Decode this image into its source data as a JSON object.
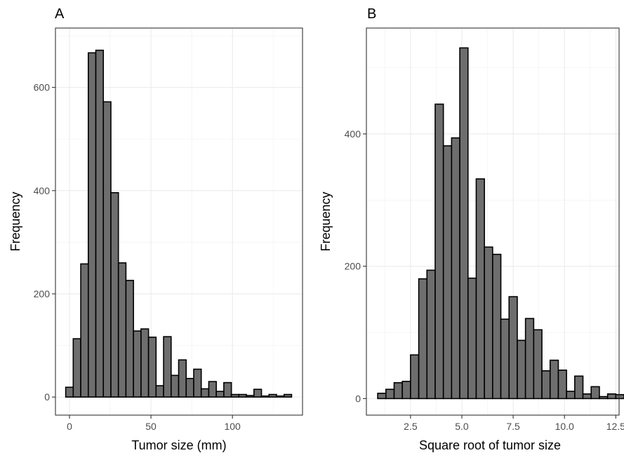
{
  "chart_data": [
    {
      "panel": "A",
      "type": "bar",
      "xlabel": "Tumor size (mm)",
      "ylabel": "Frequency",
      "xlim": [
        -8.6,
        143
      ],
      "ylim": [
        -35,
        715
      ],
      "xticks": [
        0,
        50,
        100
      ],
      "yticks": [
        0,
        200,
        400,
        600
      ],
      "xminor": [
        25,
        75,
        125
      ],
      "yminor": [
        100,
        300,
        500,
        700
      ],
      "bin_width": 4.62,
      "first_bin_start": -2.31,
      "values": [
        19,
        113,
        258,
        667,
        672,
        572,
        396,
        260,
        226,
        128,
        132,
        116,
        22,
        117,
        42,
        72,
        36,
        54,
        16,
        30,
        11,
        28,
        5,
        5,
        3,
        15,
        2,
        5,
        2,
        5
      ],
      "grid": true,
      "bar_fill": "#6e6e6e",
      "bar_stroke": "#000000"
    },
    {
      "panel": "B",
      "type": "bar",
      "xlabel": "Square root of tumor size",
      "ylabel": "Frequency",
      "xlim": [
        0.35,
        12.66
      ],
      "ylim": [
        -25,
        560
      ],
      "xticks": [
        2.5,
        5.0,
        7.5,
        10.0,
        12.5
      ],
      "xticklabels": [
        "2.5",
        "5.0",
        "7.5",
        "10.0",
        "12.5"
      ],
      "yticks": [
        0,
        200,
        400
      ],
      "xminor": [
        1.25,
        3.75,
        6.25,
        8.75,
        11.25
      ],
      "yminor": [
        100,
        300,
        500
      ],
      "bin_width": 0.4,
      "first_bin_start": 0.9,
      "values": [
        8,
        14,
        24,
        26,
        66,
        181,
        194,
        445,
        382,
        394,
        530,
        182,
        332,
        229,
        218,
        120,
        154,
        88,
        121,
        104,
        42,
        58,
        43,
        11,
        34,
        7,
        18,
        3,
        7,
        6
      ],
      "grid": true,
      "bar_fill": "#6e6e6e",
      "bar_stroke": "#000000"
    }
  ]
}
